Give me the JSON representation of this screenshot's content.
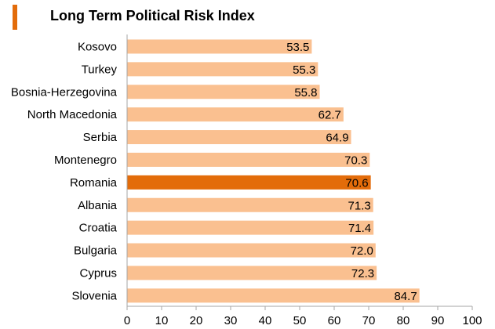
{
  "chart_data": {
    "type": "bar",
    "orientation": "horizontal",
    "title": "Long Term Political Risk Index",
    "categories": [
      "Kosovo",
      "Turkey",
      "Bosnia-Herzegovina",
      "North Macedonia",
      "Serbia",
      "Montenegro",
      "Romania",
      "Albania",
      "Croatia",
      "Bulgaria",
      "Cyprus",
      "Slovenia"
    ],
    "values": [
      53.5,
      55.3,
      55.8,
      62.7,
      64.9,
      70.3,
      70.6,
      71.3,
      71.4,
      72.0,
      72.3,
      84.7
    ],
    "value_labels": [
      "53.5",
      "55.3",
      "55.8",
      "62.7",
      "64.9",
      "70.3",
      "70.6",
      "71.3",
      "71.4",
      "72.0",
      "72.3",
      "84.7"
    ],
    "highlight": "Romania",
    "xlim": [
      0,
      100
    ],
    "xticks": [
      0,
      10,
      20,
      30,
      40,
      50,
      60,
      70,
      80,
      90,
      100
    ],
    "xlabel": "",
    "ylabel": "",
    "grid": false,
    "colors": {
      "bar": "#fac090",
      "highlight": "#e36c0a",
      "title_marker": "#e36c0a",
      "axis": "#a6a6a6"
    }
  }
}
